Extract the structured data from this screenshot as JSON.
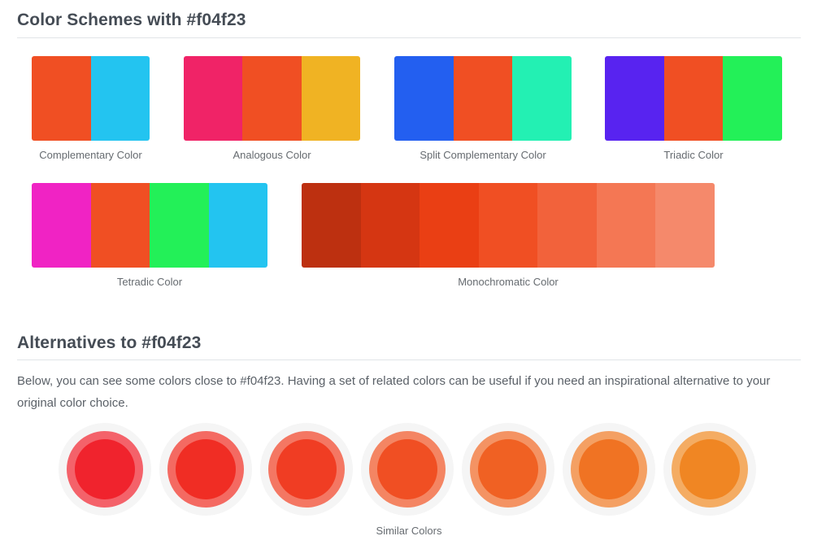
{
  "schemes": {
    "title": "Color Schemes with #f04f23",
    "palettes": [
      {
        "label": "Complementary Color",
        "colors": [
          "#f04f23",
          "#23c4f0"
        ]
      },
      {
        "label": "Analogous Color",
        "colors": [
          "#f02367",
          "#f04f23",
          "#f0b323"
        ]
      },
      {
        "label": "Split Complementary Color",
        "colors": [
          "#235ff0",
          "#f04f23",
          "#23f0b3"
        ]
      },
      {
        "label": "Triadic Color",
        "colors": [
          "#5823f0",
          "#f04f23",
          "#23f058"
        ]
      },
      {
        "label": "Tetradic Color",
        "colors": [
          "#f023c4",
          "#f04f23",
          "#23f058",
          "#23c4f0"
        ]
      },
      {
        "label": "Monochromatic Color",
        "colors": [
          "#bd3010",
          "#d53612",
          "#ea3f14",
          "#f04f23",
          "#f2623b",
          "#f47754",
          "#f5896b"
        ]
      }
    ]
  },
  "alternatives": {
    "title": "Alternatives to #f04f23",
    "description": "Below, you can see some colors close to #f04f23. Having a set of related colors can be useful if you need an inspirational alternative to your original color choice.",
    "similar_label": "Similar Colors",
    "similar": [
      {
        "inner": "#f0232d",
        "outer": "#f4626a"
      },
      {
        "inner": "#f02d24",
        "outer": "#f46a62"
      },
      {
        "inner": "#f03d23",
        "outer": "#f47763"
      },
      {
        "inner": "#f04f23",
        "outer": "#f48563"
      },
      {
        "inner": "#f06123",
        "outer": "#f49363"
      },
      {
        "inner": "#f07323",
        "outer": "#f4a063"
      },
      {
        "inner": "#f08623",
        "outer": "#f4ac63"
      }
    ]
  }
}
